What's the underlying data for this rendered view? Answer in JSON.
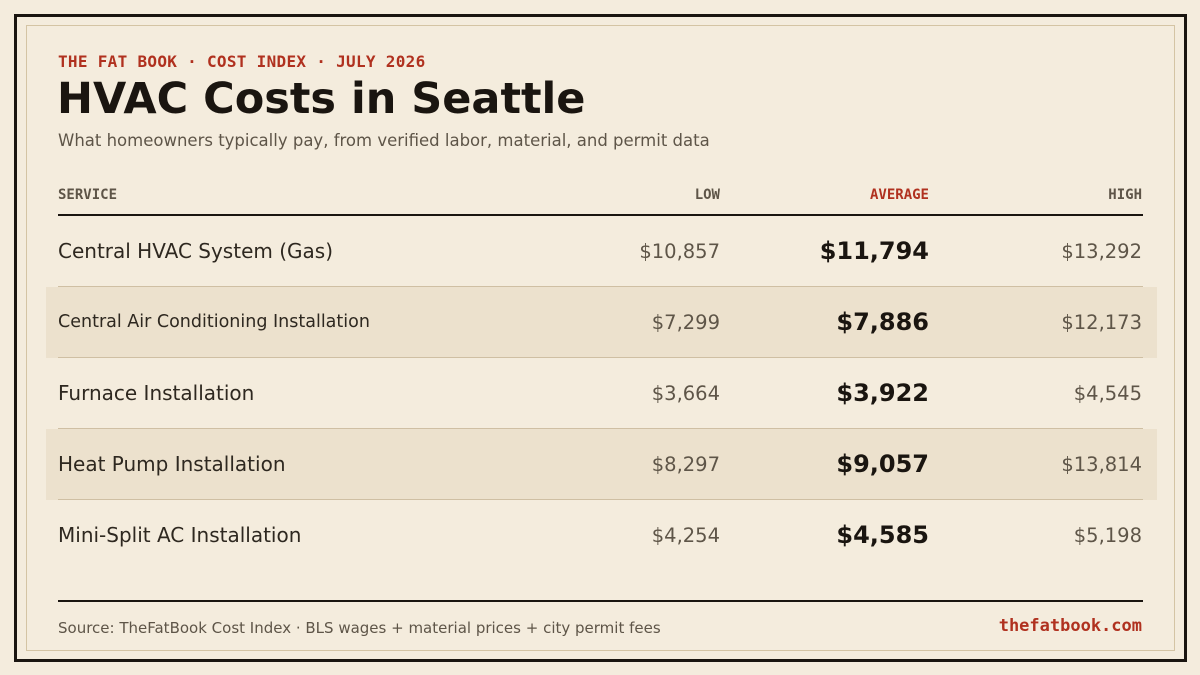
{
  "header": {
    "eyebrow": "THE FAT BOOK · COST INDEX · JULY 2026",
    "title": "HVAC Costs in Seattle",
    "subtitle": "What homeowners typically pay, from verified labor, material, and permit data"
  },
  "table": {
    "columns": {
      "service": "SERVICE",
      "low": "LOW",
      "average": "AVERAGE",
      "high": "HIGH"
    },
    "rows": [
      {
        "service": "Central HVAC System (Gas)",
        "low": "$10,857",
        "average": "$11,794",
        "high": "$13,292"
      },
      {
        "service": "Central Air Conditioning Installation",
        "low": "$7,299",
        "average": "$7,886",
        "high": "$12,173"
      },
      {
        "service": "Furnace Installation",
        "low": "$3,664",
        "average": "$3,922",
        "high": "$4,545"
      },
      {
        "service": "Heat Pump Installation",
        "low": "$8,297",
        "average": "$9,057",
        "high": "$13,814"
      },
      {
        "service": "Mini-Split AC Installation",
        "low": "$4,254",
        "average": "$4,585",
        "high": "$5,198"
      }
    ]
  },
  "footer": {
    "source": "Source: TheFatBook Cost Index · BLS wages + material prices + city permit fees",
    "site": "thefatbook.com"
  },
  "colors": {
    "background": "#f4ecdd",
    "accent": "#b0311f",
    "ink": "#1a1510",
    "muted": "#5e5548",
    "row_shade": "#ece1cd"
  }
}
